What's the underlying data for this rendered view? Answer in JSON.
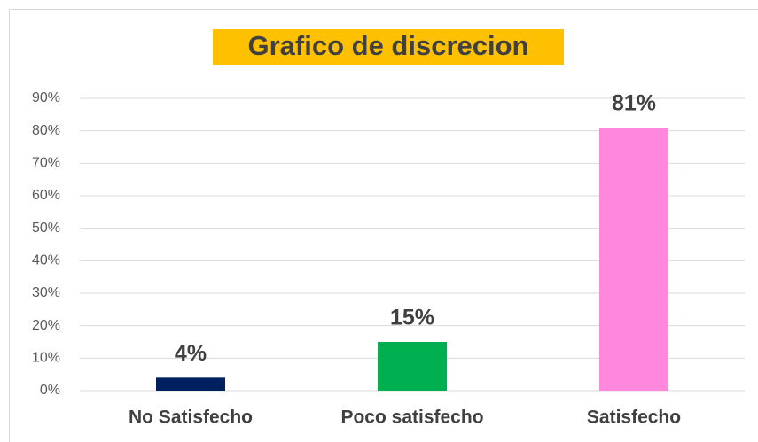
{
  "chart_data": {
    "type": "bar",
    "title": "Grafico de discrecion",
    "categories": [
      "No Satisfecho",
      "Poco satisfecho",
      "Satisfecho"
    ],
    "values": [
      4,
      15,
      81
    ],
    "value_labels": [
      "4%",
      "15%",
      "81%"
    ],
    "colors": [
      "#002060",
      "#00b050",
      "#ff88dd"
    ],
    "ylim": [
      0,
      90
    ],
    "yticks": [
      {
        "value": 0,
        "label": "0%"
      },
      {
        "value": 10,
        "label": "10%"
      },
      {
        "value": 20,
        "label": "20%"
      },
      {
        "value": 30,
        "label": "30%"
      },
      {
        "value": 40,
        "label": "40%"
      },
      {
        "value": 50,
        "label": "50%"
      },
      {
        "value": 60,
        "label": "60%"
      },
      {
        "value": 70,
        "label": "70%"
      },
      {
        "value": 80,
        "label": "80%"
      },
      {
        "value": 90,
        "label": "90%"
      }
    ],
    "grid": true
  }
}
